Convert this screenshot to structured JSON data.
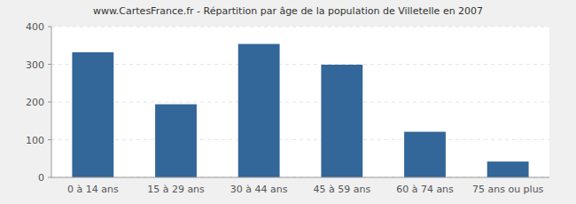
{
  "chart_data": {
    "type": "bar",
    "title": "www.CartesFrance.fr - Répartition par âge de la population de Villetelle en 2007",
    "categories": [
      "0 à 14 ans",
      "15 à 29 ans",
      "30 à 44 ans",
      "45 à 59 ans",
      "60 à 74 ans",
      "75 ans ou plus"
    ],
    "values": [
      332,
      194,
      354,
      299,
      121,
      42
    ],
    "color": "#336699",
    "ylim": [
      0,
      400
    ],
    "yticks": [
      0,
      100,
      200,
      300,
      400
    ],
    "grid": true
  }
}
